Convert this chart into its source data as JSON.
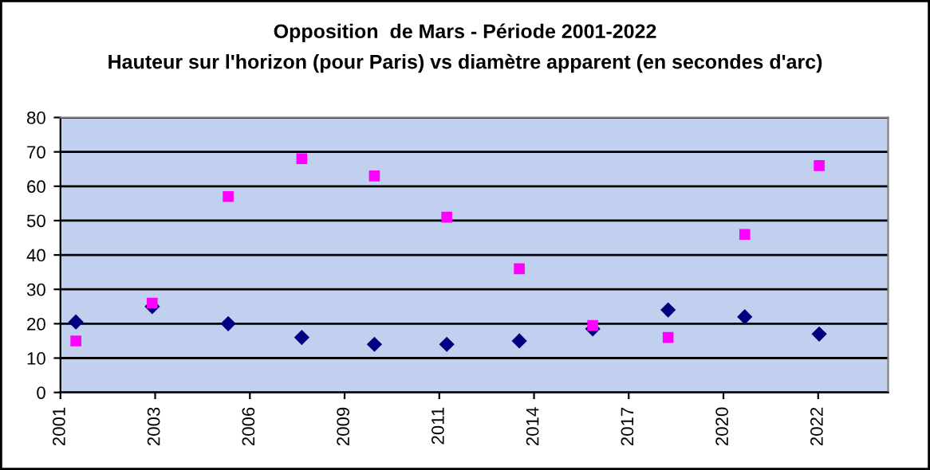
{
  "chart_data": {
    "type": "scatter",
    "title": "Opposition  de Mars - Période 2001-2022",
    "subtitle": "Hauteur sur l'horizon (pour Paris) vs diamètre apparent (en secondes d'arc)",
    "x": [
      "2001-06-13",
      "2003-08-28",
      "2005-11-07",
      "2007-12-24",
      "2010-01-29",
      "2012-03-03",
      "2014-04-08",
      "2016-05-22",
      "2018-07-27",
      "2020-10-13",
      "2022-12-08"
    ],
    "series": [
      {
        "color": "#ff00ff",
        "marker": "square",
        "values": [
          15,
          26,
          57,
          68,
          63,
          51,
          36,
          19.5,
          16,
          46,
          66
        ]
      },
      {
        "color": "#000080",
        "marker": "diamond",
        "values": [
          20.5,
          25,
          20,
          16,
          14,
          14,
          15,
          18.5,
          24,
          22,
          17
        ]
      }
    ],
    "xlim": [
      "2001-01-01",
      "2024-12-05"
    ],
    "xticks": [
      {
        "value": "2001-01-01",
        "label": "2001"
      },
      {
        "value": "2003-09-28",
        "label": "2003"
      },
      {
        "value": "2006-06-24",
        "label": "2006"
      },
      {
        "value": "2009-03-20",
        "label": "2009"
      },
      {
        "value": "2011-12-15",
        "label": "2011"
      },
      {
        "value": "2014-09-10",
        "label": "2014"
      },
      {
        "value": "2017-06-06",
        "label": "2017"
      },
      {
        "value": "2020-03-02",
        "label": "2020"
      },
      {
        "value": "2022-11-27",
        "label": "2022"
      }
    ],
    "ylim": [
      0,
      80
    ],
    "yticks": [
      0,
      10,
      20,
      30,
      40,
      50,
      60,
      70,
      80
    ],
    "grid": "y",
    "legend": false
  }
}
